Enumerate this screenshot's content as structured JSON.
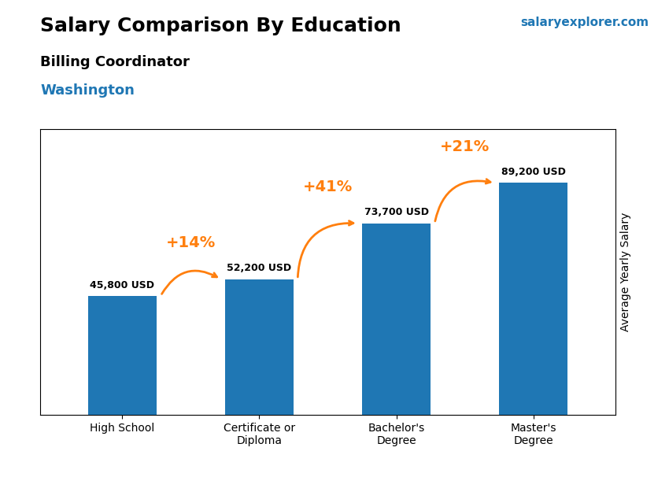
{
  "chart_data": {
    "type": "bar",
    "title": "Salary Comparison By Education",
    "subtitle": "Billing Coordinator",
    "y_label": "Average Yearly Salary",
    "categories": [
      "High School",
      "Certificate or\nDiploma",
      "Bachelor's\nDegree",
      "Master's\nDegree"
    ],
    "values": [
      45800,
      52200,
      73700,
      89200
    ],
    "value_labels": [
      "45,800 USD",
      "52,200 USD",
      "73,700 USD",
      "89,200 USD"
    ],
    "data_labels": true,
    "ylim": [
      0,
      110000
    ],
    "tick_labels": "x",
    "annotations": [
      {
        "text": "+14%",
        "from": "High School",
        "to": "Certificate or\nDiploma"
      },
      {
        "text": "+41%",
        "from": "Certificate or\nDiploma",
        "to": "Bachelor's\nDegree"
      },
      {
        "text": "+21%",
        "from": "Bachelor's\nDegree",
        "to": "Master's\nDegree"
      },
      {
        "text": "Washington"
      },
      {
        "text": "salaryexplorer.com"
      }
    ]
  }
}
